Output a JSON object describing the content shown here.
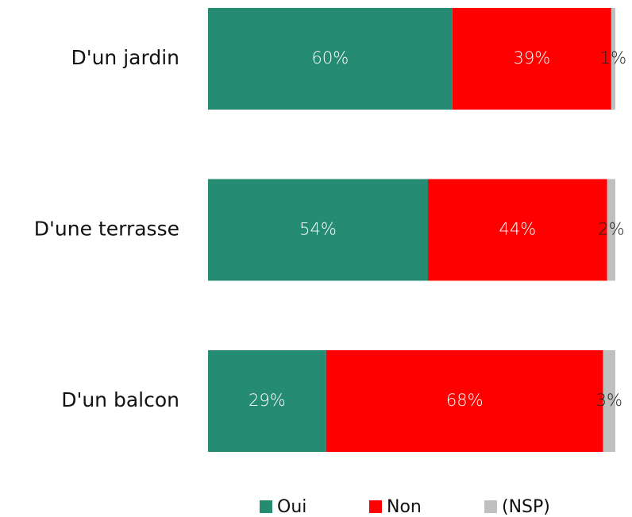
{
  "chart_data": {
    "type": "stacked-barh",
    "categories": [
      "D'un jardin",
      "D'une terrasse",
      "D'un balcon"
    ],
    "xlim": [
      0,
      100
    ],
    "series": [
      {
        "name": "Oui",
        "color": "#268b73",
        "label_color": "#ffffff",
        "values": [
          60,
          54,
          29
        ],
        "value_labels": [
          "60%",
          "54%",
          "29%"
        ]
      },
      {
        "name": "Non",
        "color": "#ff0000",
        "label_color": "#ffffff",
        "values": [
          39,
          44,
          68
        ],
        "value_labels": [
          "39%",
          "44%",
          "68%"
        ]
      },
      {
        "name": "(NSP)",
        "color": "#bfbfbf",
        "label_color": "#222222",
        "values": [
          1,
          2,
          3
        ],
        "value_labels": [
          "1%",
          "2%",
          "3%"
        ]
      }
    ],
    "legend": "bottom"
  }
}
